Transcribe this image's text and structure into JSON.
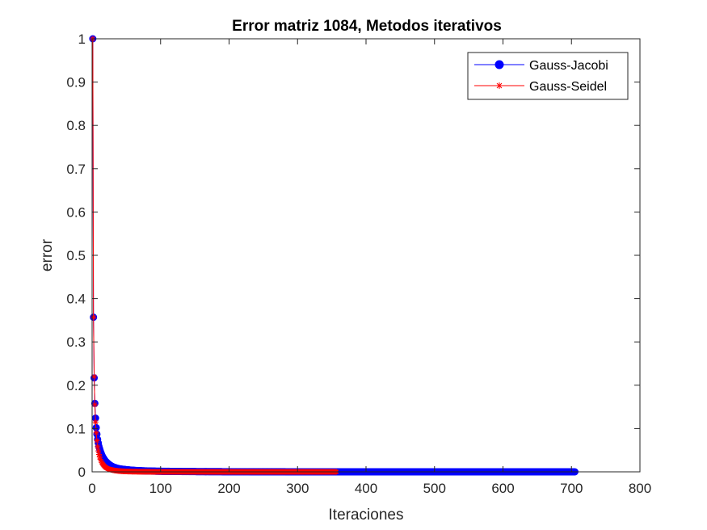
{
  "chart_data": {
    "type": "line",
    "title": "Error matriz 1084, Metodos iterativos",
    "xlabel": "Iteraciones",
    "ylabel": "error",
    "xlim": [
      0,
      800
    ],
    "ylim": [
      0,
      1
    ],
    "xticks": [
      0,
      100,
      200,
      300,
      400,
      500,
      600,
      700,
      800
    ],
    "yticks": [
      0,
      0.1,
      0.2,
      0.3,
      0.4,
      0.5,
      0.6,
      0.7,
      0.8,
      0.9,
      1
    ],
    "grid": false,
    "legend_position": "top-right",
    "series": [
      {
        "name": "Gauss-Jacobi",
        "color": "#0000ff",
        "marker": "circle",
        "iterations": 705,
        "x": [
          1,
          2,
          3,
          4,
          5,
          6,
          7,
          8,
          10,
          12,
          15,
          20,
          25,
          30,
          40,
          50,
          60,
          80,
          100,
          150,
          200,
          300,
          400,
          500,
          600,
          705
        ],
        "values": [
          1.0,
          0.357,
          0.217,
          0.158,
          0.124,
          0.102,
          0.087,
          0.075,
          0.059,
          0.048,
          0.036,
          0.024,
          0.017,
          0.012,
          0.007,
          0.005,
          0.0035,
          0.002,
          0.0013,
          0.0006,
          0.0003,
          0.0001,
          5e-05,
          2e-05,
          1e-05,
          5e-06
        ]
      },
      {
        "name": "Gauss-Seidel",
        "color": "#ff0000",
        "marker": "asterisk",
        "iterations": 357,
        "x": [
          1,
          2,
          3,
          4,
          5,
          6,
          7,
          8,
          10,
          12,
          15,
          20,
          25,
          30,
          40,
          50,
          60,
          80,
          100,
          150,
          200,
          250,
          300,
          357
        ],
        "values": [
          1.0,
          0.357,
          0.22,
          0.155,
          0.115,
          0.09,
          0.072,
          0.058,
          0.04,
          0.029,
          0.019,
          0.01,
          0.006,
          0.004,
          0.0018,
          0.0009,
          0.0005,
          0.00015,
          5e-05,
          1e-05,
          3e-06,
          1e-06,
          5e-07,
          2e-07
        ]
      }
    ]
  }
}
